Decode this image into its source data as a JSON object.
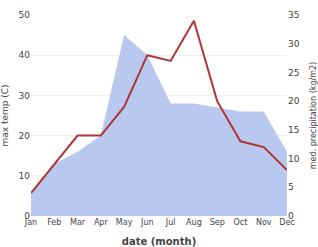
{
  "chart_data": {
    "type": "line",
    "categories": [
      "Jan",
      "Feb",
      "Mar",
      "Apr",
      "May",
      "Jun",
      "Jul",
      "Aug",
      "Sep",
      "Oct",
      "Nov",
      "Dec"
    ],
    "xlabel": "date (month)",
    "ylabel": "max temp (C)",
    "y2label": "med. precipitation (kg/m2)",
    "ylim": [
      0,
      50
    ],
    "yticks": [
      0,
      10,
      20,
      30,
      40,
      50
    ],
    "y2lim": [
      0,
      35
    ],
    "y2ticks": [
      0,
      5,
      10,
      15,
      20,
      25,
      30,
      35
    ],
    "grid": true,
    "series": [
      {
        "type": "area",
        "color": "#b8c8ee",
        "values": [
          6,
          13,
          16,
          20,
          45,
          40,
          28,
          28,
          27,
          26,
          26,
          16
        ]
      },
      {
        "type": "line",
        "color": "#b03535",
        "axis": "y2",
        "values": [
          4,
          9,
          14,
          14,
          19,
          28,
          27,
          34,
          20,
          13,
          12,
          8
        ]
      }
    ]
  }
}
